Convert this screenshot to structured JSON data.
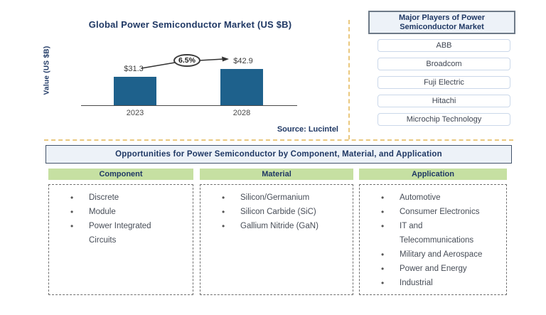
{
  "chart_data": {
    "type": "bar",
    "title": "Global Power Semiconductor Market (US $B)",
    "categories": [
      "2023",
      "2028"
    ],
    "values": [
      31.3,
      42.9
    ],
    "data_labels": [
      "$31.3",
      "$42.9"
    ],
    "growth_annotation": "6.5%",
    "ylabel": "Value (US $B)",
    "source": "Source: Lucintel",
    "grid": false,
    "legend": false
  },
  "players_panel": {
    "title": "Major Players of Power\nSemiconductor Market",
    "players": [
      "ABB",
      "Broadcom",
      "Fuji Electric",
      "Hitachi",
      "Microchip Technology"
    ]
  },
  "opportunities": {
    "banner": "Opportunities for Power Semiconductor by Component, Material, and Application",
    "columns": [
      {
        "header": "Component",
        "items": [
          "Discrete",
          "Module",
          "Power Integrated\nCircuits"
        ]
      },
      {
        "header": "Material",
        "items": [
          "Silicon/Germanium",
          "Silicon Carbide (SiC)",
          "Gallium Nitride (GaN)"
        ]
      },
      {
        "header": "Application",
        "items": [
          "Automotive",
          "Consumer Electronics",
          "IT and\nTelecommunications",
          "Military and Aerospace",
          "Power and Energy",
          "Industrial"
        ]
      }
    ]
  },
  "colors": {
    "navy": "#1F3864",
    "bar_blue": "#1E618C",
    "green_header": "#C6E0A2",
    "panel_fill": "#EDF2F8",
    "panel_border": "#44546A",
    "yellow_dashed": "#EAC87E",
    "list_text": "#474D57"
  }
}
